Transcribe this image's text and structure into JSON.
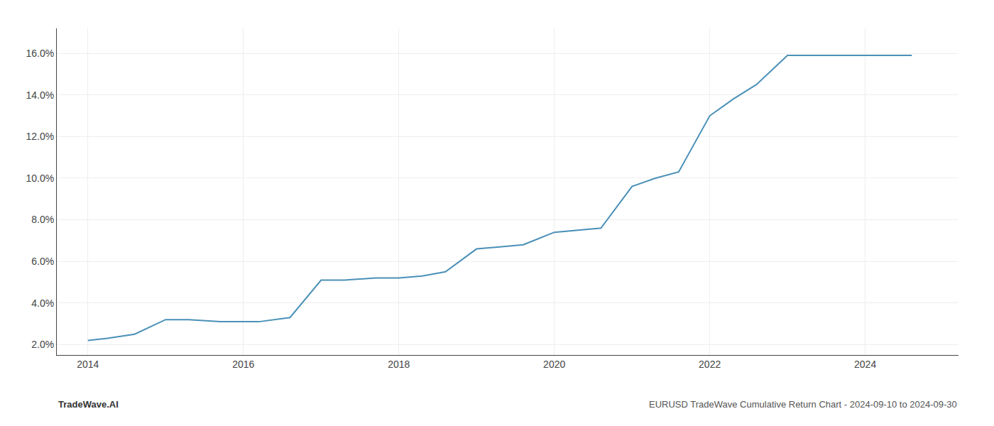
{
  "chart_data": {
    "type": "line",
    "x": [
      2014.0,
      2014.25,
      2014.6,
      2015.0,
      2015.3,
      2015.7,
      2016.0,
      2016.2,
      2016.6,
      2017.0,
      2017.3,
      2017.7,
      2018.0,
      2018.3,
      2018.6,
      2019.0,
      2019.3,
      2019.6,
      2020.0,
      2020.3,
      2020.6,
      2021.0,
      2021.3,
      2021.6,
      2022.0,
      2022.3,
      2022.6,
      2023.0,
      2023.3,
      2023.6,
      2024.0,
      2024.6
    ],
    "values": [
      0.022,
      0.023,
      0.025,
      0.032,
      0.032,
      0.031,
      0.031,
      0.031,
      0.033,
      0.051,
      0.051,
      0.052,
      0.052,
      0.053,
      0.055,
      0.066,
      0.067,
      0.068,
      0.074,
      0.075,
      0.076,
      0.096,
      0.1,
      0.103,
      0.13,
      0.138,
      0.145,
      0.159,
      0.159,
      0.159,
      0.159,
      0.159
    ],
    "color": "#4a90b8",
    "xlim": [
      2013.6,
      2025.2
    ],
    "xticks": [
      2014,
      2016,
      2018,
      2020,
      2022,
      2024
    ],
    "ylim": [
      0.015,
      0.172
    ],
    "yticks": [
      {
        "value": 0.02,
        "label": "2.0%"
      },
      {
        "value": 0.04,
        "label": "4.0%"
      },
      {
        "value": 0.06,
        "label": "6.0%"
      },
      {
        "value": 0.08,
        "label": "8.0%"
      },
      {
        "value": 0.1,
        "label": "10.0%"
      },
      {
        "value": 0.12,
        "label": "12.0%"
      },
      {
        "value": 0.14,
        "label": "14.0%"
      },
      {
        "value": 0.16,
        "label": "16.0%"
      }
    ],
    "annotations": [
      "TradeWave.AI",
      "EURUSD TradeWave Cumulative Return Chart - 2024-09-10 to 2024-09-30"
    ],
    "grid": true
  }
}
